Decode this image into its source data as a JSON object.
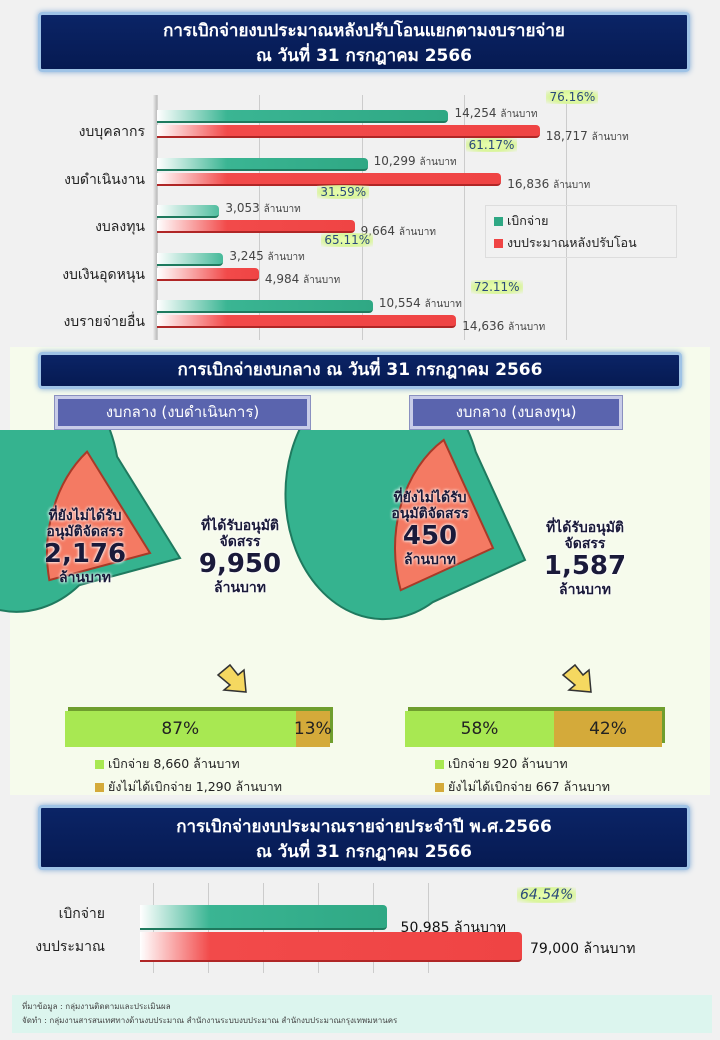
{
  "title1": {
    "line1": "การเบิกจ่ายงบประมาณหลังปรับโอนแยกตามงบรายจ่าย",
    "line2": "ณ วันที่ 31 กรกฎาคม 2566"
  },
  "chart_data": [
    {
      "type": "bar",
      "orientation": "horizontal",
      "unit": "ล้านบาท",
      "xlim": [
        0,
        20000
      ],
      "grid": true,
      "categories": [
        "งบบุคลากร",
        "งบดำเนินงาน",
        "งบลงทุน",
        "งบเงินอุดหนุน",
        "งบรายจ่ายอื่น"
      ],
      "series": [
        {
          "name": "เบิกจ่าย",
          "color": "#2fa884",
          "values": [
            14254,
            10299,
            3053,
            3245,
            10554
          ],
          "labels": [
            "14,254",
            "10,299",
            "3,053",
            "3,245",
            "10,554"
          ]
        },
        {
          "name": "งบประมาณหลังปรับโอน",
          "color": "#ef4444",
          "values": [
            18717,
            16836,
            9664,
            4984,
            14636
          ],
          "labels": [
            "18,717",
            "16,836",
            "9,664",
            "4,984",
            "14,636"
          ]
        }
      ],
      "percent_labels": [
        "76.16%",
        "61.17%",
        "31.59%",
        "65.11%",
        "72.11%"
      ],
      "legend": "right"
    },
    {
      "type": "pie",
      "title": "งบกลาง (งบดำเนินการ)",
      "slices": [
        {
          "label": "ที่ได้รับอนุมัติจัดสรร",
          "value": 9950,
          "value_label": "9,950",
          "color": "#35b38f"
        },
        {
          "label": "ที่ยังไม่ได้รับอนุมัติจัดสรร",
          "value": 2176,
          "value_label": "2,176",
          "color": "#f47a63"
        }
      ],
      "progress": {
        "paid_pct": 87,
        "paid_label": "87%",
        "unpaid_label": "13%",
        "legend": [
          "เบิกจ่าย 8,660 ล้านบาท",
          "ยังไม่ได้เบิกจ่าย 1,290 ล้านบาท"
        ]
      }
    },
    {
      "type": "pie",
      "title": "งบกลาง (งบลงทุน)",
      "slices": [
        {
          "label": "ที่ได้รับอนุมัติจัดสรร",
          "value": 1587,
          "value_label": "1,587",
          "color": "#35b38f"
        },
        {
          "label": "ที่ยังไม่ได้รับอนุมัติจัดสรร",
          "value": 450,
          "value_label": "450",
          "color": "#f47a63"
        }
      ],
      "progress": {
        "paid_pct": 58,
        "paid_label": "58%",
        "unpaid_label": "42%",
        "legend": [
          "เบิกจ่าย 920 ล้านบาท",
          "ยังไม่ได้เบิกจ่าย 667 ล้านบาท"
        ]
      }
    },
    {
      "type": "bar",
      "orientation": "horizontal",
      "unit": "ล้านบาท",
      "xlim": [
        0,
        90000
      ],
      "categories": [
        "เบิกจ่าย",
        "งบประมาณ"
      ],
      "values": [
        50985,
        79000
      ],
      "labels": [
        "50,985",
        "79,000"
      ],
      "percent_label": "64.54%"
    }
  ],
  "unit": "ล้านบาท",
  "pie_labels": {
    "approved1": "ที่ได้รับอนุมัติ",
    "approved2": "จัดสรร",
    "pending1": "ที่ยังไม่ได้รับ",
    "pending2": "อนุมัติจัดสรร"
  },
  "title2": "การเบิกจ่ายงบกลาง ณ วันที่ 31 กรกฎาคม 2566",
  "title3": {
    "line1": "การเบิกจ่ายงบประมาณรายจ่ายประจำปี พ.ศ.2566",
    "line2": "ณ วันที่ 31 กรกฎาคม 2566"
  },
  "footer": {
    "source": "ที่มาข้อมูล : กลุ่มงานติดตามและประเมินผล",
    "prepared": "จัดทำ : กลุ่มงานสารสนเทศทางด้านงบประมาณ  สำนักงานระบบงบประมาณ  สำนักงบประมาณกรุงเทพมหานคร"
  },
  "colors": {
    "paid": "#2fa884",
    "budget": "#ef4444",
    "progress_paid": "#a8e852",
    "progress_unpaid": "#d4aa3a",
    "title_bg": "#0b2466"
  }
}
